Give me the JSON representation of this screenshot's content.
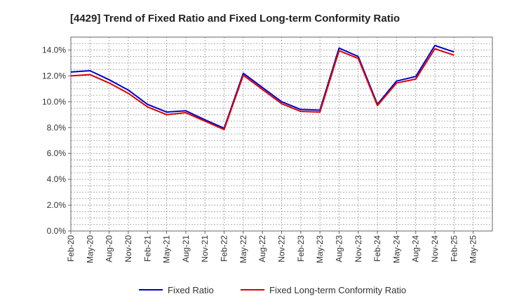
{
  "chart_data": {
    "type": "line",
    "title": "[4429]  Trend of Fixed Ratio and Fixed Long-term Conformity Ratio",
    "xlabel": "",
    "ylabel": "",
    "ylim": [
      0,
      15
    ],
    "y_ticks": [
      "0.0%",
      "2.0%",
      "4.0%",
      "6.0%",
      "8.0%",
      "10.0%",
      "12.0%",
      "14.0%"
    ],
    "y_tick_values": [
      0,
      2,
      4,
      6,
      8,
      10,
      12,
      14
    ],
    "x_tick_labels": [
      "Feb-20",
      "May-20",
      "Aug-20",
      "Nov-20",
      "Feb-21",
      "May-21",
      "Aug-21",
      "Nov-21",
      "Feb-22",
      "May-22",
      "Aug-22",
      "Nov-22",
      "Feb-23",
      "May-23",
      "Aug-23",
      "Nov-23",
      "Feb-24",
      "May-24",
      "Aug-24",
      "Nov-24",
      "Feb-25",
      "May-25"
    ],
    "categories": [
      "Feb-20",
      "May-20",
      "Aug-20",
      "Nov-20",
      "Feb-21",
      "May-21",
      "Aug-21",
      "Nov-21",
      "Feb-22",
      "May-22",
      "Aug-22",
      "Nov-22",
      "Feb-23",
      "May-23",
      "Aug-23",
      "Nov-23",
      "Feb-24",
      "May-24",
      "Aug-24",
      "Nov-24",
      "Feb-25"
    ],
    "series": [
      {
        "name": "Fixed Ratio",
        "color": "#0000cc",
        "values": [
          12.3,
          12.4,
          11.7,
          10.9,
          9.8,
          9.2,
          9.3,
          8.6,
          7.95,
          12.2,
          11.1,
          10.0,
          9.4,
          9.35,
          14.15,
          13.5,
          9.8,
          11.6,
          11.95,
          14.35,
          13.85
        ]
      },
      {
        "name": "Fixed Long-term Conformity Ratio",
        "color": "#dd0000",
        "values": [
          12.0,
          12.1,
          11.45,
          10.65,
          9.6,
          9.0,
          9.15,
          8.5,
          7.85,
          12.05,
          10.95,
          9.85,
          9.25,
          9.2,
          13.95,
          13.35,
          9.7,
          11.45,
          11.75,
          14.1,
          13.6
        ]
      }
    ],
    "grid": true,
    "legend": "bottom"
  }
}
